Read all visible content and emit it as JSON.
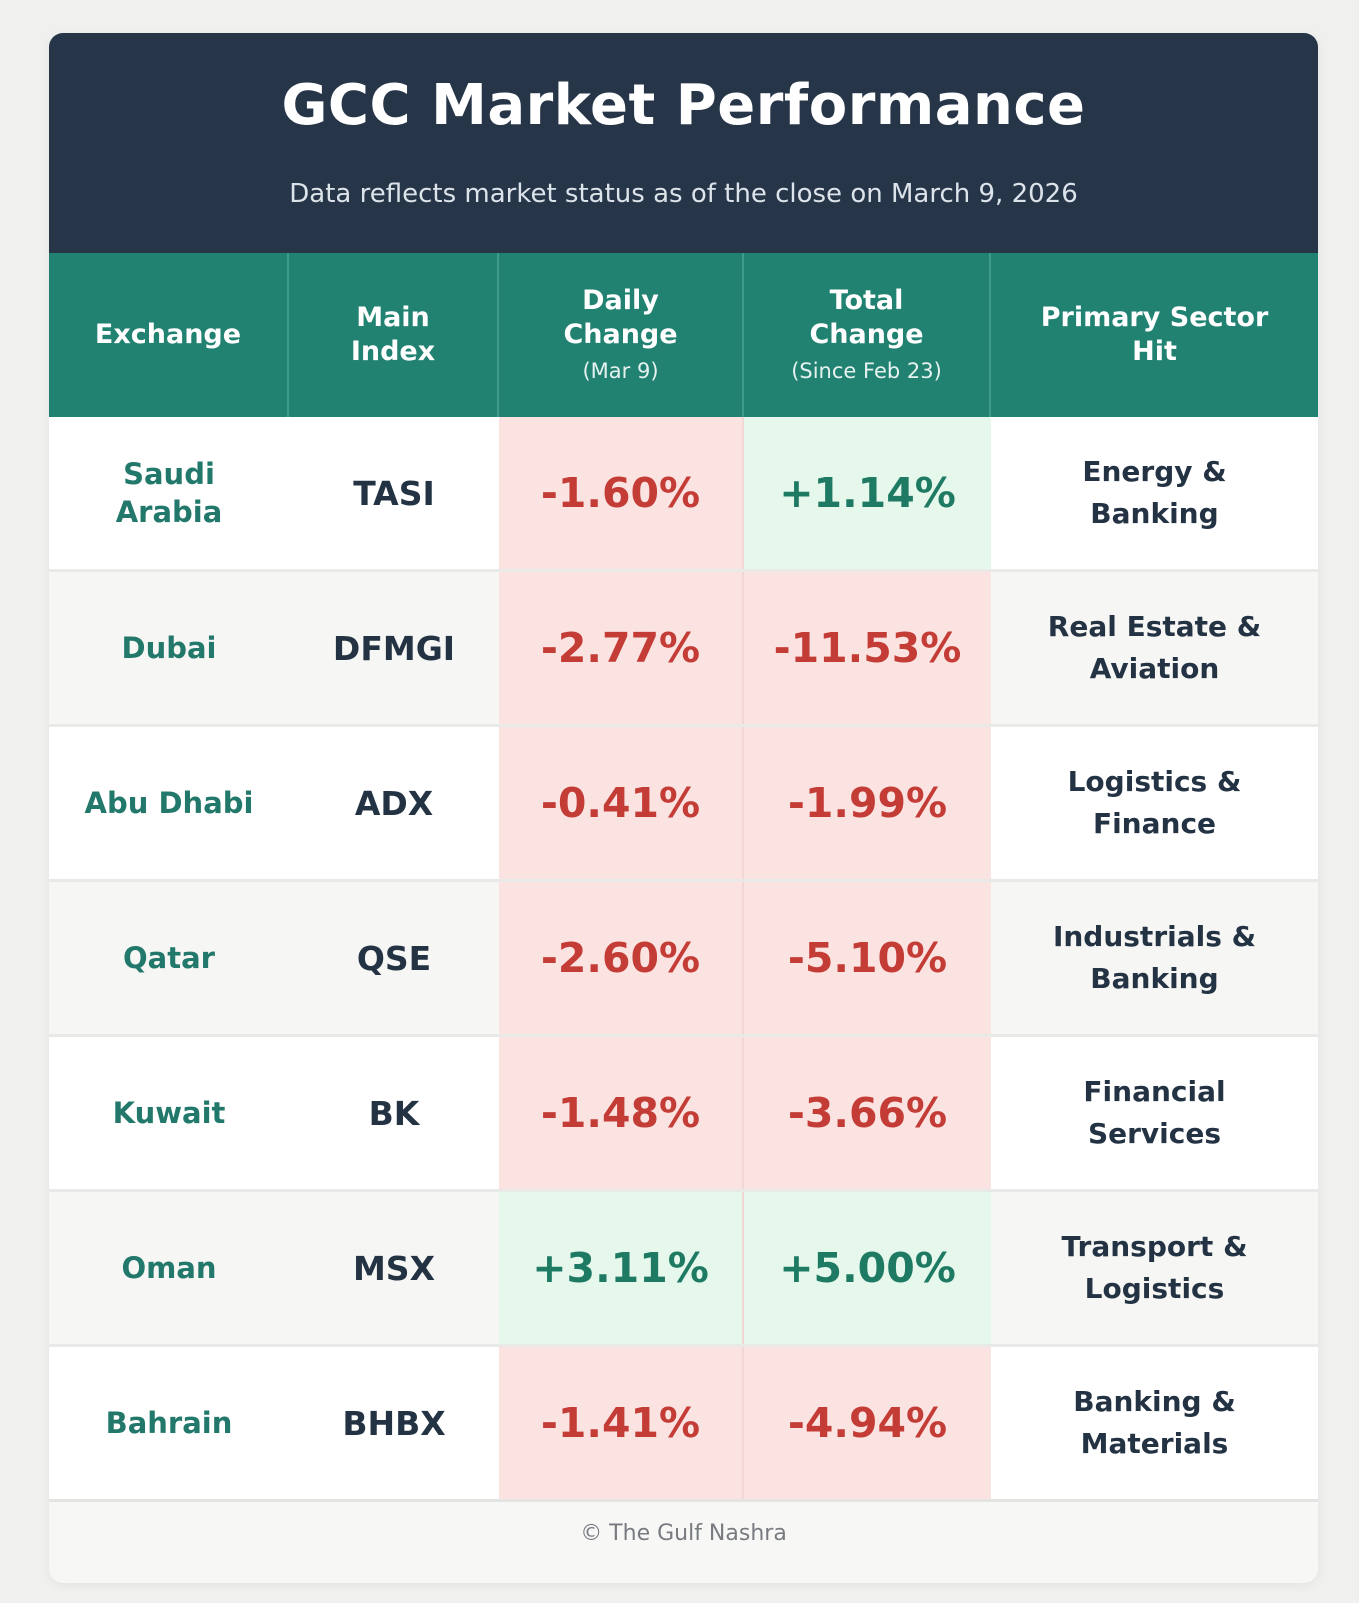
{
  "header": {
    "title": "GCC Market Performance",
    "subtitle": "Data reflects market status as of the close on March 9, 2026"
  },
  "columns": {
    "exchange": "Exchange",
    "main_index_1": "Main",
    "main_index_2": "Index",
    "daily_1": "Daily",
    "daily_2": "Change",
    "daily_sub": "(Mar 9)",
    "total_1": "Total",
    "total_2": "Change",
    "total_sub": "(Since Feb 23)",
    "sector_1": "Primary Sector",
    "sector_2": "Hit"
  },
  "rows": [
    {
      "exchange": "Saudi Arabia",
      "index": "TASI",
      "daily": "-1.60%",
      "daily_sign": "neg",
      "total": "+1.14%",
      "total_sign": "pos",
      "sector_1": "Energy &",
      "sector_2": "Banking"
    },
    {
      "exchange": "Dubai",
      "index": "DFMGI",
      "daily": "-2.77%",
      "daily_sign": "neg",
      "total": "-11.53%",
      "total_sign": "neg",
      "sector_1": "Real Estate &",
      "sector_2": "Aviation"
    },
    {
      "exchange": "Abu Dhabi",
      "index": "ADX",
      "daily": "-0.41%",
      "daily_sign": "neg",
      "total": "-1.99%",
      "total_sign": "neg",
      "sector_1": "Logistics &",
      "sector_2": "Finance"
    },
    {
      "exchange": "Qatar",
      "index": "QSE",
      "daily": "-2.60%",
      "daily_sign": "neg",
      "total": "-5.10%",
      "total_sign": "neg",
      "sector_1": "Industrials &",
      "sector_2": "Banking"
    },
    {
      "exchange": "Kuwait",
      "index": "BK",
      "daily": "-1.48%",
      "daily_sign": "neg",
      "total": "-3.66%",
      "total_sign": "neg",
      "sector_1": "Financial",
      "sector_2": "Services"
    },
    {
      "exchange": "Oman",
      "index": "MSX",
      "daily": "+3.11%",
      "daily_sign": "pos",
      "total": "+5.00%",
      "total_sign": "pos",
      "sector_1": "Transport &",
      "sector_2": "Logistics"
    },
    {
      "exchange": "Bahrain",
      "index": "BHBX",
      "daily": "-1.41%",
      "daily_sign": "neg",
      "total": "-4.94%",
      "total_sign": "neg",
      "sector_1": "Banking &",
      "sector_2": "Materials"
    }
  ],
  "footer": {
    "credit": "© The Gulf Nashra"
  },
  "colors": {
    "header_bg": "#263548",
    "column_header_bg": "#218272",
    "negative_text": "#c43c36",
    "negative_bg": "#fbe3e2",
    "positive_text": "#1f7a64",
    "positive_bg": "#e6f8ec",
    "exchange_text": "#22786a"
  }
}
